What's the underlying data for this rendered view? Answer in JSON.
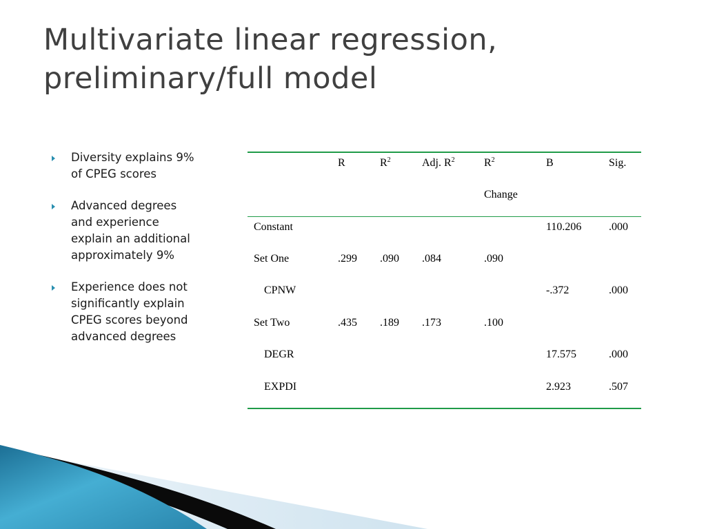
{
  "slide": {
    "title_line1": "Multivariate linear regression,",
    "title_line2": "preliminary/full model"
  },
  "bullets": [
    "Diversity explains 9% of CPEG scores",
    "Advanced degrees and experience explain an additional approximately 9%",
    "Experience does not significantly explain CPEG scores beyond advanced degrees"
  ],
  "table": {
    "headers": {
      "r": "R",
      "r2": "R",
      "r2_sup": "2",
      "adj": "Adj. R",
      "adj_sup": "2",
      "change": "R",
      "change_sup": "2",
      "change_line2": "Change",
      "b": "B",
      "sig": "Sig."
    },
    "rows": [
      {
        "label": "Constant",
        "r": "",
        "r2": "",
        "adj": "",
        "change": "",
        "b": "110.206",
        "sig": ".000"
      },
      {
        "label": "Set One",
        "r": ".299",
        "r2": ".090",
        "adj": ".084",
        "change": ".090",
        "b": "",
        "sig": ""
      },
      {
        "label": "CPNW",
        "r": "",
        "r2": "",
        "adj": "",
        "change": "",
        "b": "-.372",
        "sig": ".000"
      },
      {
        "label": "Set Two",
        "r": ".435",
        "r2": ".189",
        "adj": ".173",
        "change": ".100",
        "b": "",
        "sig": ""
      },
      {
        "label": "DEGR",
        "r": "",
        "r2": "",
        "adj": "",
        "change": "",
        "b": "17.575",
        "sig": ".000"
      },
      {
        "label": "EXPDI",
        "r": "",
        "r2": "",
        "adj": "",
        "change": "",
        "b": "2.923",
        "sig": ".507"
      }
    ]
  },
  "colors": {
    "title": "#404040",
    "table_rule": "#1f9b48",
    "bullet_arrow": "#2a8fb0",
    "swoosh_blue": "#2f8fb5",
    "swoosh_black": "#0a0a0a",
    "swoosh_light": "#d7e8f2"
  }
}
